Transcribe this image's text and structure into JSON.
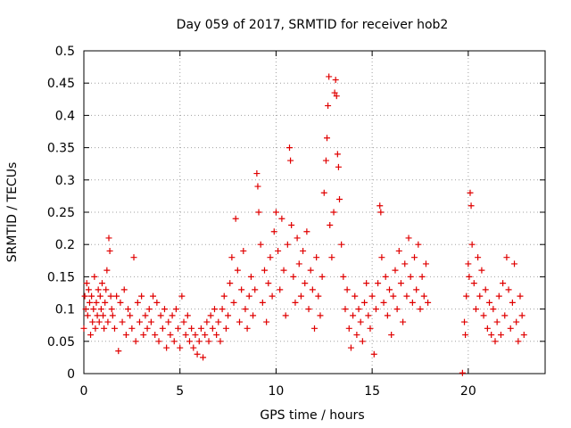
{
  "chart_data": {
    "type": "scatter",
    "title": "Day 059 of 2017, SRMTID for receiver hob2",
    "xlabel": "GPS time / hours",
    "ylabel": "SRMTID / TECUs",
    "xlim": [
      0,
      24
    ],
    "ylim": [
      0,
      0.5
    ],
    "x_ticks": [
      0,
      5,
      10,
      15,
      20
    ],
    "x_tick_labels": [
      "0",
      "5",
      "10",
      "15",
      "20"
    ],
    "y_ticks": [
      0,
      0.05,
      0.1,
      0.15,
      0.2,
      0.25,
      0.3,
      0.35,
      0.4,
      0.45,
      0.5
    ],
    "y_tick_labels": [
      "0",
      "0.05",
      "0.1",
      "0.15",
      "0.2",
      "0.25",
      "0.3",
      "0.35",
      "0.4",
      "0.45",
      "0.5"
    ],
    "grid": true,
    "marker": "+",
    "color": "#e00000",
    "series": [
      {
        "name": "SRMTID",
        "points": [
          [
            0.0,
            0.07
          ],
          [
            0.05,
            0.12
          ],
          [
            0.1,
            0.1
          ],
          [
            0.15,
            0.14
          ],
          [
            0.2,
            0.09
          ],
          [
            0.25,
            0.13
          ],
          [
            0.3,
            0.11
          ],
          [
            0.35,
            0.06
          ],
          [
            0.4,
            0.12
          ],
          [
            0.45,
            0.08
          ],
          [
            0.5,
            0.1
          ],
          [
            0.55,
            0.15
          ],
          [
            0.6,
            0.07
          ],
          [
            0.65,
            0.11
          ],
          [
            0.7,
            0.09
          ],
          [
            0.75,
            0.13
          ],
          [
            0.8,
            0.08
          ],
          [
            0.85,
            0.12
          ],
          [
            0.9,
            0.1
          ],
          [
            0.95,
            0.14
          ],
          [
            1.0,
            0.09
          ],
          [
            1.05,
            0.07
          ],
          [
            1.1,
            0.11
          ],
          [
            1.15,
            0.13
          ],
          [
            1.2,
            0.16
          ],
          [
            1.25,
            0.08
          ],
          [
            1.3,
            0.21
          ],
          [
            1.35,
            0.19
          ],
          [
            1.4,
            0.12
          ],
          [
            1.45,
            0.1
          ],
          [
            1.5,
            0.09
          ],
          [
            1.6,
            0.07
          ],
          [
            1.7,
            0.12
          ],
          [
            1.8,
            0.035
          ],
          [
            1.9,
            0.11
          ],
          [
            2.0,
            0.08
          ],
          [
            2.1,
            0.13
          ],
          [
            2.2,
            0.06
          ],
          [
            2.3,
            0.1
          ],
          [
            2.4,
            0.09
          ],
          [
            2.5,
            0.07
          ],
          [
            2.6,
            0.18
          ],
          [
            2.7,
            0.05
          ],
          [
            2.8,
            0.11
          ],
          [
            2.9,
            0.08
          ],
          [
            3.0,
            0.12
          ],
          [
            3.1,
            0.06
          ],
          [
            3.2,
            0.09
          ],
          [
            3.3,
            0.07
          ],
          [
            3.4,
            0.1
          ],
          [
            3.5,
            0.08
          ],
          [
            3.6,
            0.12
          ],
          [
            3.7,
            0.06
          ],
          [
            3.8,
            0.11
          ],
          [
            3.9,
            0.05
          ],
          [
            4.0,
            0.09
          ],
          [
            4.1,
            0.07
          ],
          [
            4.2,
            0.1
          ],
          [
            4.3,
            0.04
          ],
          [
            4.4,
            0.08
          ],
          [
            4.5,
            0.06
          ],
          [
            4.6,
            0.09
          ],
          [
            4.7,
            0.05
          ],
          [
            4.8,
            0.1
          ],
          [
            4.9,
            0.07
          ],
          [
            5.0,
            0.04
          ],
          [
            5.1,
            0.12
          ],
          [
            5.2,
            0.08
          ],
          [
            5.3,
            0.06
          ],
          [
            5.4,
            0.09
          ],
          [
            5.5,
            0.05
          ],
          [
            5.6,
            0.07
          ],
          [
            5.7,
            0.04
          ],
          [
            5.8,
            0.06
          ],
          [
            5.9,
            0.03
          ],
          [
            6.0,
            0.05
          ],
          [
            6.1,
            0.07
          ],
          [
            6.2,
            0.025
          ],
          [
            6.3,
            0.06
          ],
          [
            6.4,
            0.08
          ],
          [
            6.5,
            0.05
          ],
          [
            6.6,
            0.09
          ],
          [
            6.7,
            0.07
          ],
          [
            6.8,
            0.1
          ],
          [
            6.9,
            0.06
          ],
          [
            7.0,
            0.08
          ],
          [
            7.1,
            0.05
          ],
          [
            7.2,
            0.1
          ],
          [
            7.3,
            0.12
          ],
          [
            7.4,
            0.07
          ],
          [
            7.5,
            0.09
          ],
          [
            7.6,
            0.14
          ],
          [
            7.7,
            0.18
          ],
          [
            7.8,
            0.11
          ],
          [
            7.9,
            0.24
          ],
          [
            8.0,
            0.16
          ],
          [
            8.1,
            0.08
          ],
          [
            8.2,
            0.13
          ],
          [
            8.3,
            0.19
          ],
          [
            8.4,
            0.1
          ],
          [
            8.5,
            0.07
          ],
          [
            8.6,
            0.12
          ],
          [
            8.7,
            0.15
          ],
          [
            8.8,
            0.09
          ],
          [
            8.9,
            0.13
          ],
          [
            9.0,
            0.31
          ],
          [
            9.05,
            0.29
          ],
          [
            9.1,
            0.25
          ],
          [
            9.2,
            0.2
          ],
          [
            9.3,
            0.11
          ],
          [
            9.4,
            0.16
          ],
          [
            9.5,
            0.08
          ],
          [
            9.6,
            0.14
          ],
          [
            9.7,
            0.18
          ],
          [
            9.8,
            0.12
          ],
          [
            9.9,
            0.22
          ],
          [
            10.0,
            0.25
          ],
          [
            10.1,
            0.19
          ],
          [
            10.2,
            0.13
          ],
          [
            10.3,
            0.24
          ],
          [
            10.4,
            0.16
          ],
          [
            10.5,
            0.09
          ],
          [
            10.6,
            0.2
          ],
          [
            10.7,
            0.35
          ],
          [
            10.75,
            0.33
          ],
          [
            10.8,
            0.23
          ],
          [
            10.9,
            0.15
          ],
          [
            11.0,
            0.11
          ],
          [
            11.1,
            0.21
          ],
          [
            11.2,
            0.17
          ],
          [
            11.3,
            0.12
          ],
          [
            11.4,
            0.19
          ],
          [
            11.5,
            0.14
          ],
          [
            11.6,
            0.22
          ],
          [
            11.7,
            0.1
          ],
          [
            11.8,
            0.16
          ],
          [
            11.9,
            0.13
          ],
          [
            12.0,
            0.07
          ],
          [
            12.1,
            0.18
          ],
          [
            12.2,
            0.12
          ],
          [
            12.3,
            0.09
          ],
          [
            12.4,
            0.15
          ],
          [
            12.5,
            0.28
          ],
          [
            12.6,
            0.33
          ],
          [
            12.65,
            0.365
          ],
          [
            12.7,
            0.415
          ],
          [
            12.75,
            0.46
          ],
          [
            12.8,
            0.23
          ],
          [
            12.9,
            0.18
          ],
          [
            13.0,
            0.25
          ],
          [
            13.05,
            0.435
          ],
          [
            13.1,
            0.455
          ],
          [
            13.15,
            0.43
          ],
          [
            13.2,
            0.34
          ],
          [
            13.25,
            0.32
          ],
          [
            13.3,
            0.27
          ],
          [
            13.4,
            0.2
          ],
          [
            13.5,
            0.15
          ],
          [
            13.6,
            0.1
          ],
          [
            13.7,
            0.13
          ],
          [
            13.8,
            0.07
          ],
          [
            13.9,
            0.04
          ],
          [
            14.0,
            0.09
          ],
          [
            14.1,
            0.12
          ],
          [
            14.2,
            0.06
          ],
          [
            14.3,
            0.1
          ],
          [
            14.4,
            0.08
          ],
          [
            14.5,
            0.05
          ],
          [
            14.6,
            0.11
          ],
          [
            14.7,
            0.14
          ],
          [
            14.8,
            0.09
          ],
          [
            14.9,
            0.07
          ],
          [
            15.0,
            0.12
          ],
          [
            15.1,
            0.03
          ],
          [
            15.2,
            0.1
          ],
          [
            15.3,
            0.14
          ],
          [
            15.4,
            0.26
          ],
          [
            15.45,
            0.25
          ],
          [
            15.5,
            0.18
          ],
          [
            15.6,
            0.11
          ],
          [
            15.7,
            0.15
          ],
          [
            15.8,
            0.09
          ],
          [
            15.9,
            0.13
          ],
          [
            16.0,
            0.06
          ],
          [
            16.1,
            0.12
          ],
          [
            16.2,
            0.16
          ],
          [
            16.3,
            0.1
          ],
          [
            16.4,
            0.19
          ],
          [
            16.5,
            0.14
          ],
          [
            16.6,
            0.08
          ],
          [
            16.7,
            0.17
          ],
          [
            16.8,
            0.12
          ],
          [
            16.9,
            0.21
          ],
          [
            17.0,
            0.15
          ],
          [
            17.1,
            0.11
          ],
          [
            17.2,
            0.18
          ],
          [
            17.3,
            0.13
          ],
          [
            17.4,
            0.2
          ],
          [
            17.5,
            0.1
          ],
          [
            17.6,
            0.15
          ],
          [
            17.7,
            0.12
          ],
          [
            17.8,
            0.17
          ],
          [
            17.9,
            0.11
          ],
          [
            19.7,
            0.001
          ],
          [
            19.8,
            0.08
          ],
          [
            19.85,
            0.06
          ],
          [
            19.9,
            0.12
          ],
          [
            20.0,
            0.17
          ],
          [
            20.05,
            0.15
          ],
          [
            20.1,
            0.28
          ],
          [
            20.15,
            0.26
          ],
          [
            20.2,
            0.2
          ],
          [
            20.3,
            0.14
          ],
          [
            20.4,
            0.1
          ],
          [
            20.5,
            0.18
          ],
          [
            20.6,
            0.12
          ],
          [
            20.7,
            0.16
          ],
          [
            20.8,
            0.09
          ],
          [
            20.9,
            0.13
          ],
          [
            21.0,
            0.07
          ],
          [
            21.1,
            0.11
          ],
          [
            21.2,
            0.06
          ],
          [
            21.3,
            0.1
          ],
          [
            21.4,
            0.05
          ],
          [
            21.5,
            0.08
          ],
          [
            21.6,
            0.12
          ],
          [
            21.7,
            0.06
          ],
          [
            21.8,
            0.14
          ],
          [
            21.9,
            0.09
          ],
          [
            22.0,
            0.18
          ],
          [
            22.1,
            0.13
          ],
          [
            22.2,
            0.07
          ],
          [
            22.3,
            0.11
          ],
          [
            22.4,
            0.17
          ],
          [
            22.5,
            0.08
          ],
          [
            22.6,
            0.05
          ],
          [
            22.7,
            0.12
          ],
          [
            22.8,
            0.09
          ],
          [
            22.9,
            0.06
          ]
        ]
      }
    ]
  }
}
